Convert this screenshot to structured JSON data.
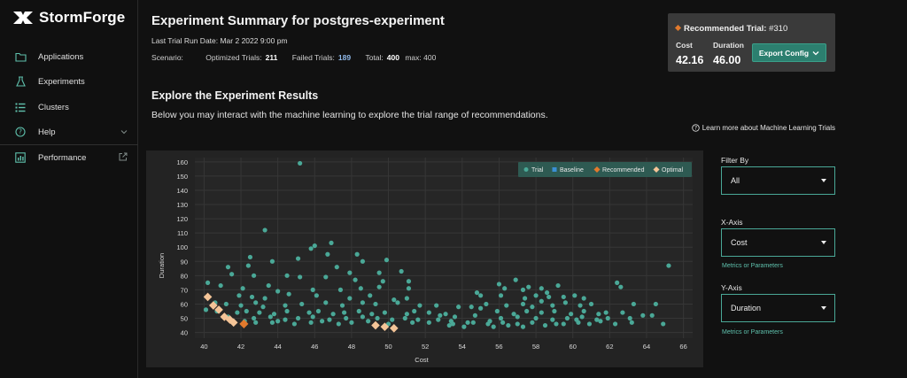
{
  "brand": {
    "name": "StormForge"
  },
  "sidebar": {
    "items": [
      {
        "label": "Applications",
        "icon": "folder-icon"
      },
      {
        "label": "Experiments",
        "icon": "flask-icon"
      },
      {
        "label": "Clusters",
        "icon": "list-icon"
      },
      {
        "label": "Help",
        "icon": "help-icon"
      },
      {
        "label": "Performance",
        "icon": "chart-icon"
      }
    ]
  },
  "header": {
    "title": "Experiment Summary for postgres-experiment",
    "run_date": "Last Trial Run Date: Mar 2 2022 9:00 pm",
    "scenario_label": "Scenario:",
    "optimized_label": "Optimized Trials:",
    "optimized_value": "211",
    "failed_label": "Failed Trials:",
    "failed_value": "189",
    "total_label": "Total:",
    "total_value": "400",
    "max_text": "max: 400"
  },
  "recommendation": {
    "title_bold": "Recommended Trial:",
    "trial_number": " #310",
    "cost_label": "Cost",
    "cost_value": "42.16",
    "duration_label": "Duration",
    "duration_value": "46.00",
    "export_label": "Export Config"
  },
  "section": {
    "title": "Explore the Experiment Results",
    "description": "Below you may interact with the machine learning to explore the trial range of recommendations.",
    "learn_more": "Learn more about Machine Learning Trials"
  },
  "controls": {
    "filter_label": "Filter By",
    "filter_value": "All",
    "xaxis_label": "X-Axis",
    "xaxis_value": "Cost",
    "xaxis_link": "Metrics or Parameters",
    "yaxis_label": "Y-Axis",
    "yaxis_value": "Duration",
    "yaxis_link": "Metrics or Parameters"
  },
  "colors": {
    "trial": "#4aa897",
    "baseline": "#3b8fd4",
    "recommended": "#e27a2d",
    "optimal": "#f4c497",
    "accent": "#2c7f6f"
  },
  "chart_data": {
    "type": "scatter",
    "title": "",
    "xlabel": "Cost",
    "ylabel": "Duration",
    "xlim": [
      39.5,
      66.5
    ],
    "ylim": [
      36,
      163
    ],
    "xticks": [
      40,
      42,
      44,
      46,
      48,
      50,
      52,
      54,
      56,
      58,
      60,
      62,
      64,
      66
    ],
    "yticks": [
      40,
      50,
      60,
      70,
      80,
      90,
      100,
      110,
      120,
      130,
      140,
      150,
      160
    ],
    "legend": [
      "Trial",
      "Baseline",
      "Recommended",
      "Optimal"
    ],
    "series": [
      {
        "name": "Trial",
        "points": [
          [
            45.2,
            159
          ],
          [
            43.3,
            112
          ],
          [
            46.9,
            103
          ],
          [
            46.0,
            101
          ],
          [
            45.8,
            99
          ],
          [
            42.5,
            93
          ],
          [
            46.7,
            95
          ],
          [
            48.3,
            95
          ],
          [
            45.1,
            92
          ],
          [
            48.6,
            90
          ],
          [
            43.7,
            90
          ],
          [
            49.9,
            91
          ],
          [
            42.4,
            87
          ],
          [
            41.3,
            86
          ],
          [
            47.2,
            86
          ],
          [
            47.9,
            82
          ],
          [
            49.5,
            82
          ],
          [
            50.7,
            83
          ],
          [
            41.5,
            81
          ],
          [
            44.5,
            80
          ],
          [
            42.7,
            80
          ],
          [
            45.2,
            79
          ],
          [
            46.6,
            79
          ],
          [
            48.2,
            77
          ],
          [
            51.1,
            76
          ],
          [
            49.7,
            76
          ],
          [
            40.2,
            75
          ],
          [
            40.9,
            73
          ],
          [
            42.1,
            71
          ],
          [
            43.5,
            73
          ],
          [
            44.0,
            69
          ],
          [
            45.9,
            70
          ],
          [
            47.4,
            70
          ],
          [
            48.5,
            71
          ],
          [
            49.5,
            72
          ],
          [
            51.1,
            71
          ],
          [
            41.9,
            66
          ],
          [
            42.6,
            65
          ],
          [
            43.3,
            64
          ],
          [
            44.6,
            67
          ],
          [
            46.1,
            66
          ],
          [
            47.9,
            64
          ],
          [
            49.0,
            66
          ],
          [
            50.3,
            63
          ],
          [
            51.0,
            64
          ],
          [
            40.6,
            61
          ],
          [
            41.2,
            60
          ],
          [
            42.0,
            59
          ],
          [
            42.8,
            61
          ],
          [
            43.2,
            58
          ],
          [
            44.4,
            59
          ],
          [
            45.3,
            60
          ],
          [
            46.6,
            61
          ],
          [
            47.5,
            59
          ],
          [
            48.6,
            61
          ],
          [
            49.3,
            60
          ],
          [
            50.5,
            61
          ],
          [
            51.7,
            59
          ],
          [
            52.6,
            59
          ],
          [
            53.8,
            58
          ],
          [
            54.5,
            58
          ],
          [
            55.0,
            57
          ],
          [
            40.1,
            56
          ],
          [
            40.7,
            55
          ],
          [
            41.8,
            54
          ],
          [
            42.3,
            55
          ],
          [
            43.0,
            54
          ],
          [
            43.8,
            53
          ],
          [
            44.5,
            55
          ],
          [
            45.7,
            54
          ],
          [
            46.2,
            55
          ],
          [
            47.0,
            53
          ],
          [
            47.6,
            54
          ],
          [
            48.4,
            55
          ],
          [
            49.1,
            53
          ],
          [
            49.8,
            54
          ],
          [
            51.0,
            53
          ],
          [
            51.4,
            55
          ],
          [
            52.2,
            54
          ],
          [
            53.1,
            53
          ],
          [
            41.3,
            51
          ],
          [
            42.7,
            50
          ],
          [
            43.6,
            51
          ],
          [
            44.4,
            49
          ],
          [
            45.1,
            50
          ],
          [
            45.9,
            51
          ],
          [
            46.8,
            49
          ],
          [
            47.7,
            50
          ],
          [
            48.6,
            51
          ],
          [
            49.4,
            50
          ],
          [
            50.2,
            49
          ],
          [
            50.9,
            50
          ],
          [
            51.6,
            49
          ],
          [
            52.7,
            49
          ],
          [
            53.4,
            48
          ],
          [
            54.3,
            47
          ],
          [
            55.5,
            48
          ],
          [
            42.2,
            48
          ],
          [
            42.8,
            47
          ],
          [
            43.7,
            47
          ],
          [
            44.0,
            48
          ],
          [
            44.9,
            46
          ],
          [
            45.8,
            47
          ],
          [
            46.4,
            48
          ],
          [
            47.3,
            46
          ],
          [
            48.0,
            47
          ],
          [
            48.9,
            48
          ],
          [
            50.0,
            46
          ],
          [
            51.3,
            47
          ],
          [
            53.3,
            45
          ],
          [
            54.1,
            44
          ],
          [
            55.7,
            44
          ],
          [
            56.5,
            45
          ],
          [
            57.3,
            44
          ],
          [
            56.0,
            74
          ],
          [
            56.3,
            71
          ],
          [
            56.9,
            77
          ],
          [
            57.3,
            70
          ],
          [
            57.6,
            72
          ],
          [
            58.3,
            71
          ],
          [
            58.6,
            68
          ],
          [
            59.2,
            73
          ],
          [
            54.8,
            68
          ],
          [
            55.0,
            66
          ],
          [
            56.1,
            66
          ],
          [
            57.4,
            64
          ],
          [
            58.0,
            66
          ],
          [
            58.7,
            65
          ],
          [
            59.5,
            65
          ],
          [
            60.1,
            66
          ],
          [
            60.6,
            64
          ],
          [
            55.3,
            60
          ],
          [
            56.4,
            59
          ],
          [
            57.3,
            60
          ],
          [
            57.8,
            58
          ],
          [
            58.3,
            62
          ],
          [
            58.9,
            59
          ],
          [
            59.6,
            61
          ],
          [
            60.4,
            59
          ],
          [
            61.0,
            60
          ],
          [
            55.9,
            55
          ],
          [
            56.8,
            53
          ],
          [
            57.5,
            55
          ],
          [
            58.3,
            54
          ],
          [
            59.0,
            55
          ],
          [
            59.9,
            53
          ],
          [
            60.6,
            55
          ],
          [
            61.4,
            53
          ],
          [
            61.8,
            54
          ],
          [
            52.8,
            52
          ],
          [
            53.6,
            51
          ],
          [
            54.7,
            52
          ],
          [
            56.1,
            50
          ],
          [
            57.0,
            51
          ],
          [
            58.0,
            50
          ],
          [
            58.9,
            49
          ],
          [
            59.7,
            50
          ],
          [
            60.5,
            51
          ],
          [
            61.3,
            49
          ],
          [
            52.2,
            47
          ],
          [
            53.5,
            46
          ],
          [
            54.6,
            47
          ],
          [
            55.4,
            46
          ],
          [
            56.2,
            47
          ],
          [
            57.0,
            46
          ],
          [
            57.8,
            47
          ],
          [
            58.5,
            45
          ],
          [
            59.1,
            46
          ],
          [
            60.3,
            47
          ],
          [
            60.9,
            46
          ],
          [
            61.5,
            48
          ],
          [
            62.3,
            46
          ],
          [
            63.1,
            50
          ],
          [
            63.8,
            52
          ],
          [
            64.3,
            52
          ],
          [
            64.9,
            46
          ],
          [
            64.5,
            60
          ],
          [
            65.2,
            87
          ],
          [
            62.6,
            72
          ],
          [
            62.4,
            75
          ],
          [
            63.3,
            60
          ],
          [
            62.7,
            54
          ],
          [
            61.9,
            50
          ],
          [
            63.2,
            47
          ],
          [
            60.2,
            49
          ],
          [
            59.5,
            46
          ]
        ]
      },
      {
        "name": "Optimal",
        "points": [
          [
            40.2,
            65
          ],
          [
            40.5,
            59
          ],
          [
            40.8,
            56
          ],
          [
            41.1,
            51
          ],
          [
            41.4,
            49
          ],
          [
            41.6,
            47
          ],
          [
            49.3,
            45
          ],
          [
            49.8,
            44
          ],
          [
            50.3,
            43
          ]
        ]
      },
      {
        "name": "Recommended",
        "points": [
          [
            42.16,
            46
          ]
        ]
      }
    ]
  }
}
